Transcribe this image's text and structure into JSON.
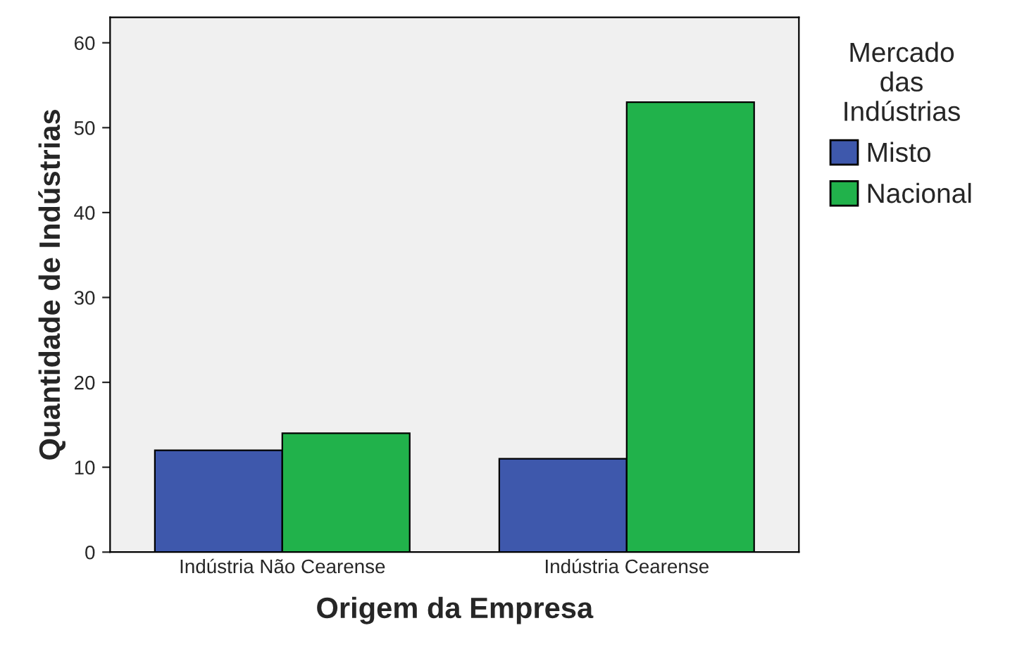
{
  "chart_data": {
    "type": "bar",
    "xlabel": "Origem da Empresa",
    "ylabel": "Quantidade de Indústrias",
    "legend_title": "Mercado\ndas\nIndústrias",
    "categories": [
      "Indústria Não Cearense",
      "Indústria Cearense"
    ],
    "series": [
      {
        "name": "Misto",
        "color": "#3e58ac",
        "values": [
          12,
          11
        ]
      },
      {
        "name": "Nacional",
        "color": "#21b24b",
        "values": [
          14,
          53
        ]
      }
    ],
    "ylim": [
      0,
      63
    ],
    "yticks": [
      0,
      10,
      20,
      30,
      40,
      50,
      60
    ],
    "grid": false,
    "legend": "right"
  }
}
